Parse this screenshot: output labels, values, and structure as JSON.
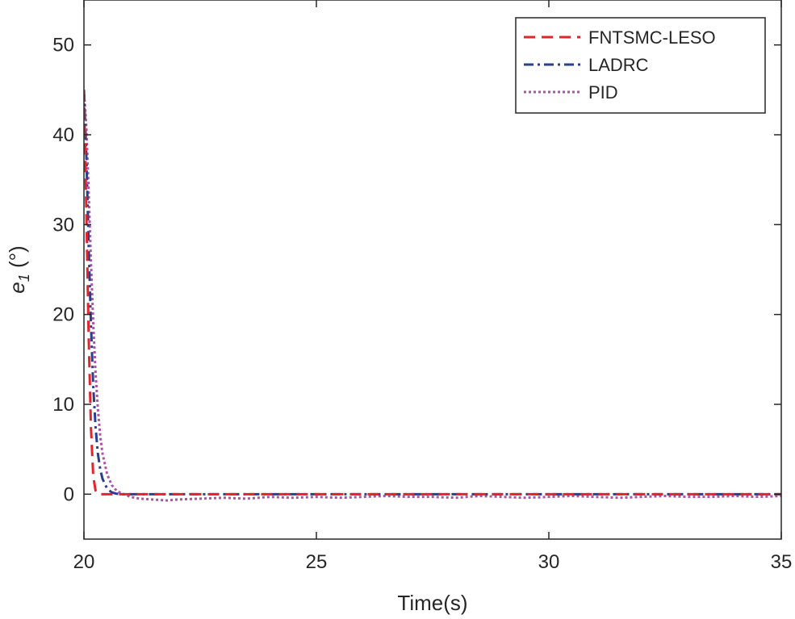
{
  "chart_data": {
    "type": "line",
    "title": "",
    "xlabel": "Time(s)",
    "ylabel_base": "e",
    "ylabel_sub": "1",
    "ylabel_unit": " (°)",
    "xlim": [
      20,
      35
    ],
    "ylim": [
      -5,
      55
    ],
    "xticks": [
      20,
      25,
      30,
      35
    ],
    "xtick_labels": [
      "20",
      "25",
      "30",
      "35"
    ],
    "yticks": [
      0,
      10,
      20,
      30,
      40,
      50
    ],
    "ytick_labels": [
      "0",
      "10",
      "20",
      "30",
      "40",
      "50"
    ],
    "grid": false,
    "legend_position": "top-right",
    "series": [
      {
        "name": "FNTSMC-LESO",
        "color": "#e3242b",
        "style": "dashed",
        "x": [
          20.0,
          20.05,
          20.1,
          20.15,
          20.2,
          20.25,
          20.3,
          20.35,
          20.4,
          21.0,
          22.0,
          23.0,
          24.0,
          25.0,
          26.0,
          27.0,
          28.0,
          29.0,
          30.0,
          31.0,
          32.0,
          33.0,
          34.0,
          35.0
        ],
        "y": [
          45.0,
          32.0,
          18.0,
          7.5,
          2.0,
          0.4,
          0.05,
          0.0,
          0.0,
          0.0,
          0.0,
          0.0,
          0.0,
          0.0,
          0.0,
          0.0,
          0.0,
          0.0,
          0.0,
          0.0,
          0.0,
          0.0,
          0.0,
          0.0
        ]
      },
      {
        "name": "LADRC",
        "color": "#2b3f8f",
        "style": "dashdot",
        "x": [
          20.0,
          20.05,
          20.1,
          20.15,
          20.2,
          20.25,
          20.3,
          20.35,
          20.4,
          20.5,
          20.6,
          20.7,
          20.8,
          21.0,
          22.0,
          23.0,
          24.0,
          25.0,
          26.0,
          27.0,
          28.0,
          29.0,
          30.0,
          31.0,
          32.0,
          33.0,
          34.0,
          35.0
        ],
        "y": [
          45.0,
          38.0,
          28.0,
          19.0,
          12.0,
          7.5,
          4.5,
          2.8,
          1.7,
          0.6,
          0.2,
          0.05,
          0.0,
          0.0,
          0.0,
          0.0,
          0.0,
          0.0,
          0.0,
          0.0,
          0.0,
          0.0,
          0.0,
          0.0,
          0.0,
          0.0,
          0.0,
          0.0
        ]
      },
      {
        "name": "PID",
        "color": "#b24fae",
        "style": "dotted",
        "x": [
          20.0,
          20.05,
          20.1,
          20.15,
          20.2,
          20.25,
          20.3,
          20.35,
          20.4,
          20.5,
          20.6,
          20.7,
          20.8,
          20.9,
          21.0,
          21.2,
          21.5,
          21.8,
          22.0,
          22.5,
          23.0,
          23.5,
          24.0,
          24.5,
          25.0,
          25.5,
          26.0,
          26.5,
          27.0,
          27.5,
          28.0,
          28.5,
          29.0,
          29.5,
          30.0,
          30.5,
          31.0,
          31.5,
          32.0,
          32.5,
          33.0,
          33.5,
          34.0,
          34.5,
          35.0
        ],
        "y": [
          45.0,
          41.0,
          34.0,
          26.0,
          19.0,
          13.5,
          9.5,
          6.5,
          4.5,
          2.2,
          1.0,
          0.4,
          0.1,
          -0.1,
          -0.3,
          -0.5,
          -0.6,
          -0.7,
          -0.6,
          -0.5,
          -0.4,
          -0.5,
          -0.3,
          -0.4,
          -0.3,
          -0.4,
          -0.3,
          -0.2,
          -0.3,
          -0.3,
          -0.4,
          -0.2,
          -0.3,
          -0.4,
          -0.3,
          -0.2,
          -0.3,
          -0.4,
          -0.3,
          -0.2,
          -0.3,
          -0.3,
          -0.2,
          -0.3,
          -0.2
        ]
      }
    ]
  }
}
